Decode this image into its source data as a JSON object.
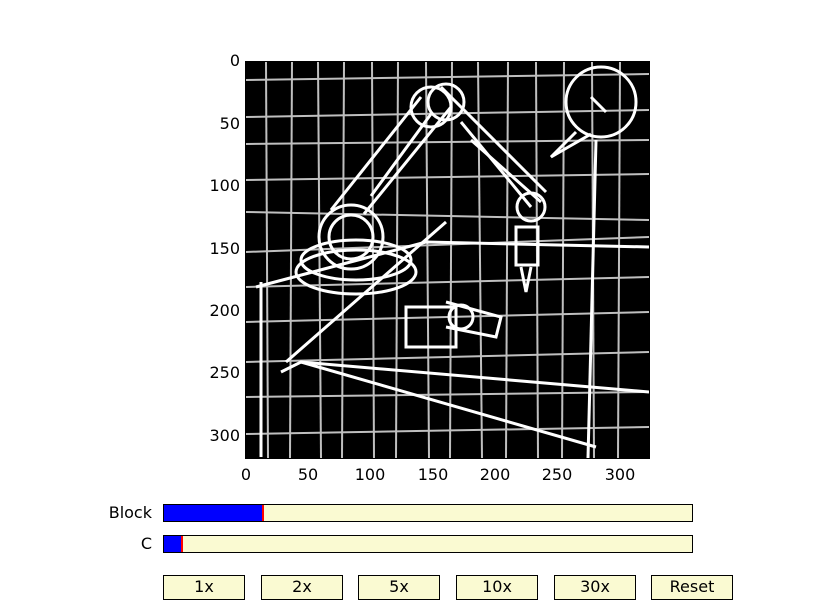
{
  "axes": {
    "x_ticks": [
      "0",
      "50",
      "100",
      "150",
      "200",
      "250",
      "300"
    ],
    "y_ticks": [
      "0",
      "50",
      "100",
      "150",
      "200",
      "250",
      "300"
    ],
    "image_content": "binary edge-detected sketch of a robotic arm"
  },
  "sliders": [
    {
      "label": "Block",
      "fraction": 0.185
    },
    {
      "label": "C",
      "fraction": 0.032
    }
  ],
  "buttons": {
    "b1": "1x",
    "b2": "2x",
    "b5": "5x",
    "b10": "10x",
    "b30": "30x",
    "reset": "Reset"
  },
  "colors": {
    "slider_bg": "#fafad2",
    "slider_fill": "#0000ff",
    "slider_marker": "#ff0000",
    "image_bg": "#000000",
    "image_fg": "#ffffff"
  }
}
